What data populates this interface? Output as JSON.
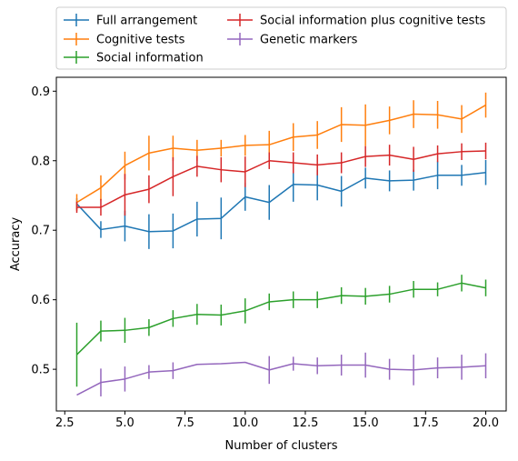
{
  "chart_data": {
    "type": "line",
    "title": "",
    "xlabel": "Number of clusters",
    "ylabel": "Accuracy",
    "xlim": [
      2.15,
      20.85
    ],
    "ylim": [
      0.44,
      0.92
    ],
    "xticks": [
      2.5,
      5.0,
      7.5,
      10.0,
      12.5,
      15.0,
      17.5,
      20.0
    ],
    "xtick_labels": [
      "2.5",
      "5.0",
      "7.5",
      "10.0",
      "12.5",
      "15.0",
      "17.5",
      "20.0"
    ],
    "yticks": [
      0.5,
      0.6,
      0.7,
      0.8,
      0.9
    ],
    "ytick_labels": [
      "0.5",
      "0.6",
      "0.7",
      "0.8",
      "0.9"
    ],
    "grid": false,
    "legend_placement": "top, two columns",
    "error_bars": true,
    "x": [
      3,
      4,
      5,
      6,
      7,
      8,
      9,
      10,
      11,
      12,
      13,
      14,
      15,
      16,
      17,
      18,
      19,
      20
    ],
    "series": [
      {
        "name": "Full arrangement",
        "color": "#1f77b4",
        "values": [
          0.738,
          0.701,
          0.706,
          0.698,
          0.699,
          0.716,
          0.717,
          0.748,
          0.74,
          0.766,
          0.765,
          0.756,
          0.775,
          0.771,
          0.772,
          0.779,
          0.779,
          0.783
        ],
        "errors": [
          0.008,
          0.012,
          0.022,
          0.025,
          0.025,
          0.025,
          0.03,
          0.02,
          0.025,
          0.025,
          0.022,
          0.022,
          0.015,
          0.015,
          0.015,
          0.02,
          0.015,
          0.018
        ]
      },
      {
        "name": "Cognitive tests",
        "color": "#ff7f0e",
        "values": [
          0.74,
          0.761,
          0.793,
          0.811,
          0.818,
          0.815,
          0.818,
          0.822,
          0.823,
          0.834,
          0.837,
          0.852,
          0.851,
          0.858,
          0.867,
          0.866,
          0.86,
          0.88
        ],
        "errors": [
          0.012,
          0.018,
          0.02,
          0.025,
          0.018,
          0.015,
          0.012,
          0.015,
          0.02,
          0.02,
          0.02,
          0.025,
          0.03,
          0.02,
          0.02,
          0.02,
          0.02,
          0.018
        ]
      },
      {
        "name": "Social information",
        "color": "#2ca02c",
        "values": [
          0.521,
          0.555,
          0.556,
          0.56,
          0.573,
          0.579,
          0.578,
          0.584,
          0.597,
          0.6,
          0.6,
          0.606,
          0.605,
          0.608,
          0.615,
          0.615,
          0.624,
          0.617
        ]
      },
      {
        "name": "Social information plus cognitive tests",
        "color": "#d62728",
        "values": [
          0.733,
          0.733,
          0.751,
          0.759,
          0.777,
          0.792,
          0.787,
          0.784,
          0.8,
          0.797,
          0.794,
          0.797,
          0.806,
          0.808,
          0.802,
          0.81,
          0.813,
          0.814
        ],
        "errors": [
          0.008,
          0.012,
          0.03,
          0.02,
          0.028,
          0.015,
          0.018,
          0.022,
          0.012,
          0.015,
          0.015,
          0.015,
          0.015,
          0.015,
          0.018,
          0.012,
          0.012,
          0.012
        ]
      },
      {
        "name": "Genetic markers",
        "color": "#9467bd",
        "values": [
          0.463,
          0.481,
          0.486,
          0.496,
          0.498,
          0.507,
          0.508,
          0.51,
          0.499,
          0.508,
          0.505,
          0.506,
          0.506,
          0.5,
          0.499,
          0.502,
          0.503,
          0.505
        ],
        "errors": [
          0.0,
          0.02,
          0.018,
          0.01,
          0.012,
          0.0,
          0.0,
          0.0,
          0.02,
          0.01,
          0.012,
          0.015,
          0.018,
          0.015,
          0.022,
          0.015,
          0.018,
          0.018
        ]
      }
    ]
  }
}
